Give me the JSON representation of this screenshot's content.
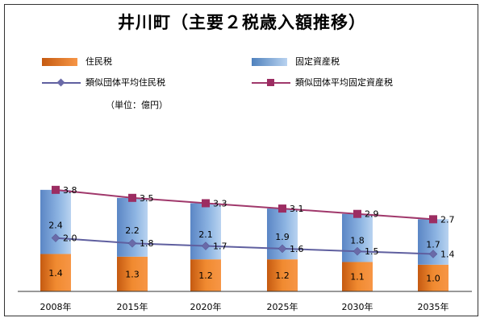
{
  "title": "井川町（主要２税歳入額推移）",
  "unit_note": "（単位：億円）",
  "colors": {
    "resident_tax": "#e36c09",
    "fixed_asset_tax": "#8db4e2",
    "avg_resident_line": "#5f5f9f",
    "avg_fixed_line": "#a0386b",
    "avg_fixed_marker": "#9c2d62",
    "axis": "#333333"
  },
  "legend": {
    "resident_tax": "住民税",
    "fixed_asset_tax": "固定資産税",
    "avg_resident": "類似団体平均住民税",
    "avg_fixed": "類似団体平均固定資産税"
  },
  "chart_data": {
    "type": "bar",
    "stacked": true,
    "categories": [
      "2008年",
      "2015年",
      "2020年",
      "2025年",
      "2030年",
      "2035年"
    ],
    "series": [
      {
        "name": "住民税",
        "kind": "bar",
        "values": [
          1.4,
          1.3,
          1.2,
          1.2,
          1.1,
          1.0
        ]
      },
      {
        "name": "固定資産税",
        "kind": "bar",
        "values": [
          2.4,
          2.2,
          2.1,
          1.9,
          1.8,
          1.7
        ]
      },
      {
        "name": "類似団体平均住民税",
        "kind": "line",
        "marker": "diamond",
        "values": [
          2.0,
          1.8,
          1.7,
          1.6,
          1.5,
          1.4
        ]
      },
      {
        "name": "類似団体平均固定資産税",
        "kind": "line",
        "marker": "square",
        "values": [
          3.8,
          3.5,
          3.3,
          3.1,
          2.9,
          2.7
        ]
      }
    ],
    "data_labels": {
      "resident_tax": [
        "1.4",
        "1.3",
        "1.2",
        "1.2",
        "1.1",
        "1.0"
      ],
      "fixed_asset_tax": [
        "2.4",
        "2.2",
        "2.1",
        "1.9",
        "1.8",
        "1.7"
      ],
      "avg_resident": [
        "2.0",
        "1.8",
        "1.7",
        "1.6",
        "1.5",
        "1.4"
      ],
      "avg_fixed": [
        "3.8",
        "3.5",
        "3.3",
        "3.1",
        "2.9",
        "2.7"
      ]
    },
    "ylim": [
      0,
      4.5
    ],
    "grid": false,
    "legend_position": "top"
  }
}
